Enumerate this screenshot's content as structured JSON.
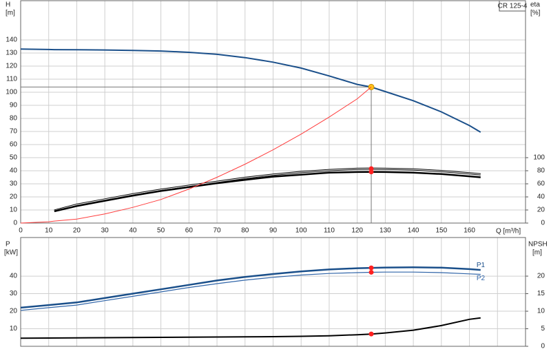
{
  "chart_data": [
    {
      "type": "line",
      "title": "CR 125-4",
      "y_label": "H",
      "y_unit": "[m]",
      "y2_label": "eta",
      "y2_unit": "[%]",
      "x_label": "Q [m³/h]",
      "x": [
        0,
        10,
        12,
        20,
        30,
        40,
        50,
        60,
        70,
        80,
        90,
        100,
        110,
        120,
        125,
        130,
        140,
        150,
        160,
        164
      ],
      "xlim": [
        0,
        180
      ],
      "xticks": [
        0,
        10,
        20,
        30,
        40,
        50,
        60,
        70,
        80,
        90,
        100,
        110,
        120,
        130,
        140,
        150,
        160
      ],
      "ylim": [
        0,
        170
      ],
      "yticks": [
        0,
        10,
        20,
        30,
        40,
        50,
        60,
        70,
        80,
        90,
        100,
        110,
        120,
        130,
        140
      ],
      "y2lim": [
        0,
        340
      ],
      "y2ticks": [
        0,
        20,
        40,
        60,
        80,
        100
      ],
      "grid": true,
      "series": [
        {
          "color": "#1a4f8a",
          "values": [
            133,
            132.7,
            132.6,
            132.5,
            132.3,
            132,
            131.5,
            130.5,
            129,
            126.5,
            123,
            118.5,
            112.5,
            106,
            104,
            100.5,
            93.5,
            85,
            74.5,
            69.5
          ]
        },
        {
          "color": "#000000",
          "axis": "y2",
          "values": [
            null,
            null,
            19,
            28,
            36,
            44,
            51,
            57,
            63,
            69,
            74,
            78,
            81,
            83,
            83.2,
            83,
            82,
            79.5,
            76,
            74.5
          ]
        },
        {
          "color": "#000000",
          "axis": "y2",
          "values": [
            null,
            null,
            18,
            26,
            34,
            42,
            49,
            55,
            61,
            66,
            71,
            74,
            77,
            78,
            78.2,
            78,
            77,
            75,
            71.5,
            70
          ]
        },
        {
          "color": "#ff3b3b",
          "values": [
            0,
            1,
            1.5,
            3,
            7,
            12,
            18,
            26,
            35,
            45,
            56,
            68,
            81,
            95,
            104,
            null,
            null,
            null,
            null,
            null
          ]
        }
      ]
    },
    {
      "type": "line",
      "y_label": "P",
      "y_unit": "[kW]",
      "y2_label": "NPSH",
      "y2_unit": "[m]",
      "x": [
        0,
        10,
        20,
        30,
        40,
        50,
        60,
        70,
        80,
        90,
        100,
        110,
        120,
        125,
        130,
        140,
        150,
        160,
        164
      ],
      "xlim": [
        0,
        180
      ],
      "xticks": [
        0,
        10,
        20,
        30,
        40,
        50,
        60,
        70,
        80,
        90,
        100,
        110,
        120,
        130,
        140,
        150,
        160,
        170
      ],
      "ylim": [
        0,
        62
      ],
      "yticks": [
        10,
        20,
        30,
        40
      ],
      "y2lim": [
        0,
        31
      ],
      "y2ticks": [
        0,
        5,
        10,
        15,
        20
      ],
      "grid": true,
      "series": [
        {
          "name": "P1",
          "color": "#1a4f8a",
          "values": [
            22,
            23.5,
            25,
            27.5,
            30,
            32.5,
            35,
            37.5,
            39.5,
            41.2,
            42.7,
            43.8,
            44.5,
            44.7,
            44.9,
            45,
            44.8,
            44,
            43.5
          ]
        },
        {
          "name": "P2",
          "color": "#2f64a8",
          "values": [
            20.5,
            22,
            23.5,
            26,
            28.5,
            31,
            33.5,
            35.7,
            37.7,
            39.3,
            40.6,
            41.5,
            42,
            42.2,
            42.3,
            42.3,
            42,
            41.3,
            41
          ]
        },
        {
          "color": "#000000",
          "axis": "y2",
          "values": [
            2.3,
            2.35,
            2.4,
            2.45,
            2.5,
            2.55,
            2.6,
            2.65,
            2.7,
            2.75,
            2.85,
            3.0,
            3.3,
            3.5,
            3.8,
            4.6,
            5.9,
            7.7,
            8.1
          ]
        }
      ]
    }
  ]
}
